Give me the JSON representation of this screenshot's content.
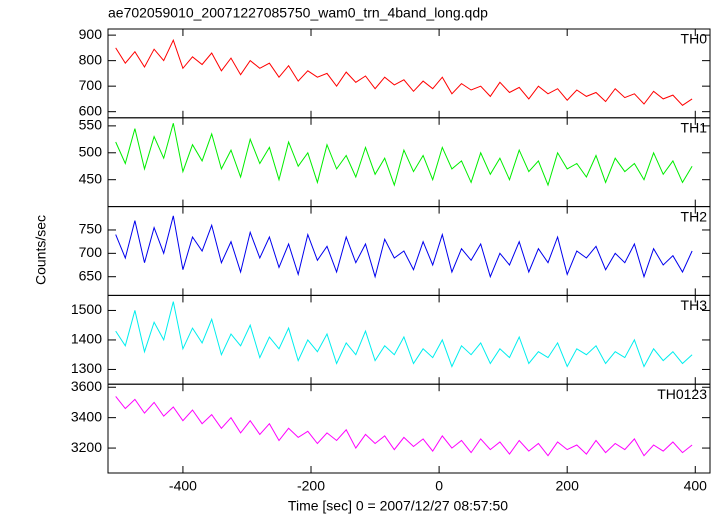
{
  "chart_data": {
    "type": "line",
    "title": "ae702059010_20071227085750_wam0_trn_4band_long.qdp",
    "xlabel": "Time [sec] 0 = 2007/12/27 08:57:50",
    "ylabel": "Counts/sec",
    "xlim": [
      -517,
      423
    ],
    "xticks": [
      -400,
      -200,
      0,
      200,
      400
    ],
    "x": [
      -505,
      -490,
      -475,
      -460,
      -445,
      -430,
      -415,
      -400,
      -385,
      -370,
      -355,
      -340,
      -325,
      -310,
      -295,
      -280,
      -265,
      -250,
      -235,
      -220,
      -205,
      -190,
      -175,
      -160,
      -145,
      -130,
      -115,
      -100,
      -85,
      -70,
      -55,
      -40,
      -25,
      -10,
      5,
      20,
      35,
      50,
      65,
      80,
      95,
      110,
      125,
      140,
      155,
      170,
      185,
      200,
      215,
      230,
      245,
      260,
      275,
      290,
      305,
      320,
      335,
      350,
      365,
      380,
      395
    ],
    "series": [
      {
        "name": "TH0",
        "color": "#ff0000",
        "ylim": [
          576,
          924
        ],
        "yticks": [
          600,
          700,
          800,
          900
        ],
        "values": [
          850,
          790,
          835,
          775,
          845,
          800,
          880,
          770,
          815,
          785,
          830,
          760,
          810,
          745,
          800,
          770,
          790,
          735,
          780,
          720,
          760,
          735,
          750,
          700,
          755,
          715,
          740,
          690,
          735,
          705,
          725,
          680,
          720,
          690,
          735,
          670,
          710,
          685,
          700,
          660,
          715,
          675,
          695,
          650,
          700,
          670,
          690,
          645,
          685,
          660,
          675,
          640,
          690,
          655,
          670,
          630,
          680,
          650,
          665,
          625,
          650
        ]
      },
      {
        "name": "TH1",
        "color": "#00ee00",
        "ylim": [
          400,
          565
        ],
        "yticks": [
          450,
          500,
          550
        ],
        "values": [
          520,
          480,
          545,
          470,
          530,
          490,
          555,
          465,
          515,
          485,
          535,
          470,
          505,
          455,
          525,
          480,
          510,
          450,
          520,
          475,
          500,
          445,
          515,
          470,
          495,
          455,
          510,
          460,
          490,
          440,
          505,
          465,
          495,
          450,
          510,
          470,
          485,
          445,
          500,
          460,
          490,
          450,
          505,
          465,
          485,
          440,
          500,
          470,
          480,
          455,
          495,
          445,
          490,
          465,
          480,
          450,
          500,
          460,
          485,
          445,
          475
        ]
      },
      {
        "name": "TH2",
        "color": "#0000ee",
        "ylim": [
          610,
          800
        ],
        "yticks": [
          650,
          700,
          750
        ],
        "values": [
          740,
          690,
          770,
          680,
          755,
          700,
          780,
          665,
          735,
          705,
          760,
          680,
          725,
          660,
          745,
          690,
          735,
          670,
          720,
          655,
          740,
          685,
          715,
          660,
          735,
          680,
          720,
          650,
          730,
          690,
          705,
          665,
          725,
          675,
          740,
          660,
          710,
          685,
          720,
          650,
          700,
          675,
          725,
          660,
          710,
          680,
          735,
          655,
          705,
          690,
          715,
          665,
          700,
          680,
          720,
          650,
          710,
          675,
          695,
          660,
          705
        ]
      },
      {
        "name": "TH3",
        "color": "#00eeee",
        "ylim": [
          1250,
          1551
        ],
        "yticks": [
          1300,
          1400,
          1500
        ],
        "values": [
          1430,
          1380,
          1500,
          1360,
          1460,
          1400,
          1530,
          1370,
          1440,
          1390,
          1470,
          1350,
          1420,
          1380,
          1450,
          1340,
          1410,
          1370,
          1440,
          1330,
          1400,
          1360,
          1420,
          1320,
          1390,
          1350,
          1430,
          1330,
          1380,
          1350,
          1410,
          1320,
          1370,
          1340,
          1400,
          1310,
          1380,
          1350,
          1390,
          1320,
          1370,
          1340,
          1410,
          1320,
          1360,
          1340,
          1390,
          1310,
          1370,
          1350,
          1380,
          1320,
          1360,
          1340,
          1400,
          1310,
          1370,
          1330,
          1360,
          1320,
          1350
        ]
      },
      {
        "name": "TH0123",
        "color": "#ff00ff",
        "ylim": [
          3036,
          3620
        ],
        "yticks": [
          3200,
          3400,
          3600
        ],
        "values": [
          3540,
          3460,
          3520,
          3430,
          3500,
          3410,
          3470,
          3380,
          3450,
          3360,
          3420,
          3330,
          3400,
          3300,
          3380,
          3290,
          3360,
          3250,
          3330,
          3270,
          3310,
          3230,
          3300,
          3250,
          3320,
          3200,
          3290,
          3230,
          3280,
          3190,
          3270,
          3210,
          3260,
          3180,
          3280,
          3200,
          3250,
          3170,
          3260,
          3190,
          3240,
          3160,
          3250,
          3180,
          3230,
          3150,
          3240,
          3190,
          3220,
          3160,
          3250,
          3170,
          3230,
          3190,
          3260,
          3150,
          3220,
          3180,
          3240,
          3170,
          3220
        ]
      }
    ]
  }
}
